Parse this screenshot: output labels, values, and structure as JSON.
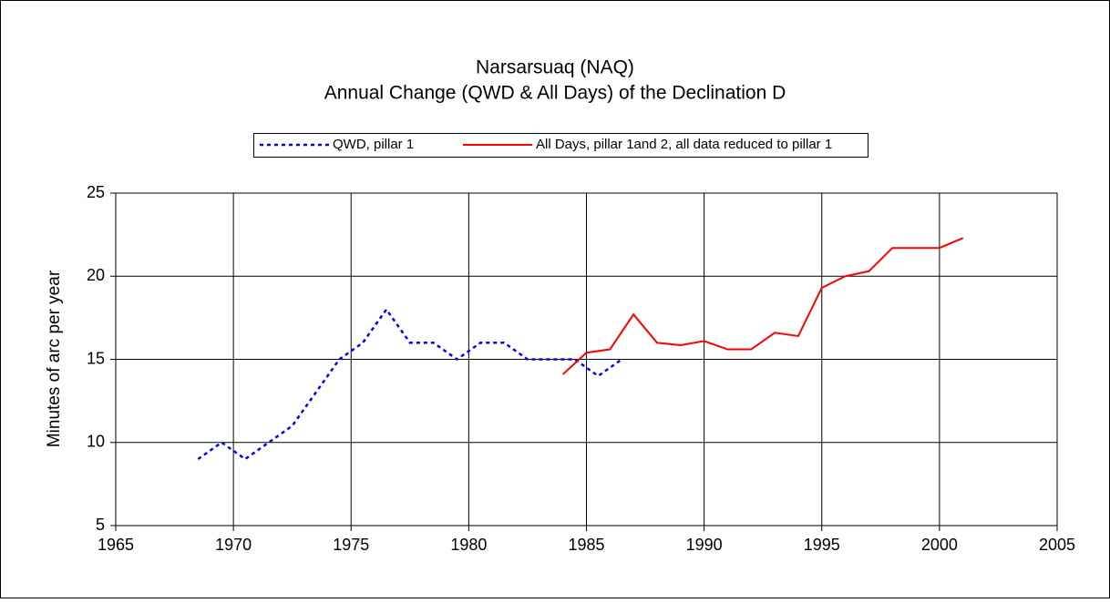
{
  "chart_data": {
    "type": "line",
    "title": "Narsarsuaq (NAQ)",
    "subtitle": "Annual Change (QWD & All Days) of the Declination D",
    "ylabel": "Minutes of arc per year",
    "xlim": [
      1965,
      2005
    ],
    "xticks": [
      1965,
      1970,
      1975,
      1980,
      1985,
      1990,
      1995,
      2000,
      2005
    ],
    "ylim": [
      5,
      25
    ],
    "yticks": [
      5,
      10,
      15,
      20,
      25
    ],
    "grid": true,
    "legend": "top",
    "series": [
      {
        "name": "QWD, pillar 1",
        "color": "#0000ff",
        "dashed": true,
        "x": [
          1968.5,
          1969.5,
          1970.5,
          1971.5,
          1972.5,
          1973.5,
          1974.5,
          1975.5,
          1976.5,
          1977.5,
          1978.5,
          1979.5,
          1980.5,
          1981.5,
          1982.5,
          1983.5,
          1984.5,
          1985.5,
          1986.5
        ],
        "values": [
          9,
          10,
          9,
          10,
          11,
          13,
          15,
          16,
          18,
          16,
          16,
          15,
          16,
          16,
          15,
          15,
          15,
          14,
          15
        ]
      },
      {
        "name": "All Days, pillar 1and 2, all data reduced to pillar 1",
        "color": "#ff0000",
        "dashed": false,
        "x": [
          1984,
          1985,
          1986,
          1987,
          1988,
          1989,
          1990,
          1991,
          1992,
          1993,
          1994,
          1995,
          1996,
          1997,
          1998,
          1999,
          2000,
          2001
        ],
        "values": [
          14.1,
          15.4,
          15.6,
          17.7,
          16.0,
          15.85,
          16.1,
          15.6,
          15.6,
          16.6,
          16.4,
          19.3,
          20.0,
          20.3,
          21.7,
          21.7,
          21.7,
          22.3
        ]
      }
    ]
  }
}
